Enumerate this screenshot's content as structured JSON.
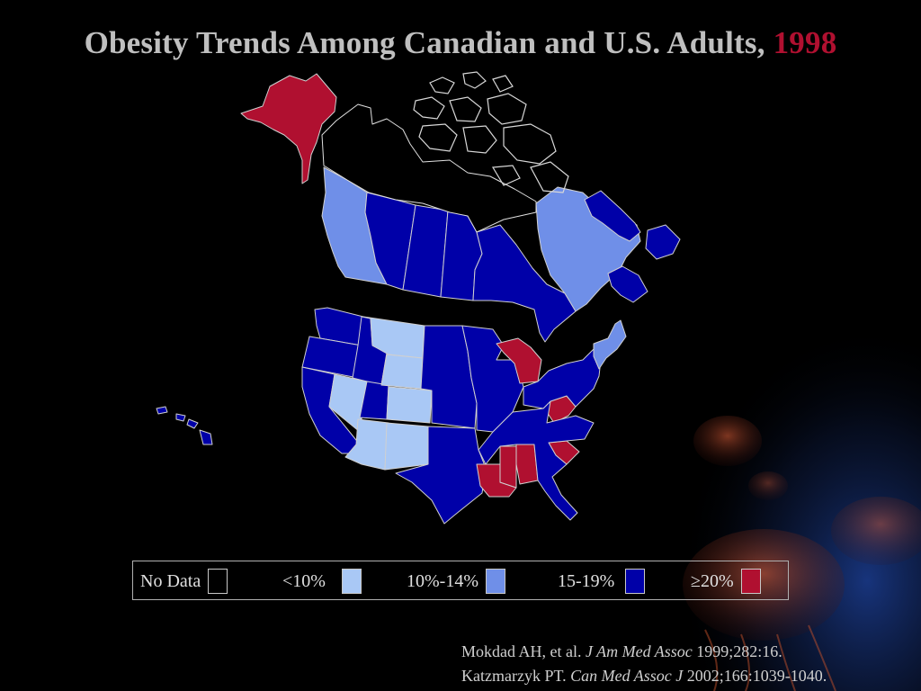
{
  "title": {
    "main": "Obesity Trends Among Canadian and U.S. Adults,",
    "year": "1998"
  },
  "colors": {
    "no_data": "#000000",
    "lt10": "#a9c8f5",
    "p10_14": "#6f8fe8",
    "p15_19": "#0000a8",
    "ge20": "#b01030",
    "title_year": "#b01030"
  },
  "legend": {
    "items": [
      {
        "label": "No Data",
        "color": "#000000"
      },
      {
        "label": "<10%",
        "color": "#a9c8f5"
      },
      {
        "label": "10%-14%",
        "color": "#6f8fe8"
      },
      {
        "label": "15-19%",
        "color": "#0000a8"
      },
      {
        "label": "≥20%",
        "color": "#b01030"
      }
    ]
  },
  "citations": [
    {
      "author": "Mokdad AH, et al.",
      "journal": "J Am Med Assoc",
      "ref": "1999;282:16."
    },
    {
      "author": "Katzmarzyk PT.",
      "journal": "Can Med Assoc J",
      "ref": "2002;166:1039-1040."
    }
  ],
  "map_data": {
    "regions": [
      {
        "name": "Alaska",
        "category": "ge20"
      },
      {
        "name": "British Columbia",
        "category": "p10_14"
      },
      {
        "name": "Alberta",
        "category": "p15_19"
      },
      {
        "name": "Saskatchewan",
        "category": "p15_19"
      },
      {
        "name": "Manitoba",
        "category": "p15_19"
      },
      {
        "name": "Ontario",
        "category": "p15_19"
      },
      {
        "name": "Quebec",
        "category": "p10_14"
      },
      {
        "name": "Newfoundland",
        "category": "p15_19"
      },
      {
        "name": "Maritimes",
        "category": "p15_19"
      },
      {
        "name": "Northern Territories",
        "category": "no_data"
      },
      {
        "name": "Hawaii",
        "category": "p15_19"
      },
      {
        "name": "Washington",
        "category": "p15_19"
      },
      {
        "name": "Oregon",
        "category": "p15_19"
      },
      {
        "name": "California",
        "category": "p15_19"
      },
      {
        "name": "Idaho",
        "category": "p15_19"
      },
      {
        "name": "Nevada",
        "category": "lt10"
      },
      {
        "name": "Utah",
        "category": "p15_19"
      },
      {
        "name": "Arizona",
        "category": "lt10"
      },
      {
        "name": "Montana",
        "category": "lt10"
      },
      {
        "name": "Wyoming",
        "category": "lt10"
      },
      {
        "name": "Colorado",
        "category": "lt10"
      },
      {
        "name": "New Mexico",
        "category": "lt10"
      },
      {
        "name": "Texas",
        "category": "p15_19"
      },
      {
        "name": "Great Plains",
        "category": "p15_19"
      },
      {
        "name": "Midwest",
        "category": "p15_19"
      },
      {
        "name": "Michigan",
        "category": "ge20"
      },
      {
        "name": "Louisiana",
        "category": "ge20"
      },
      {
        "name": "Mississippi",
        "category": "ge20"
      },
      {
        "name": "Alabama",
        "category": "ge20"
      },
      {
        "name": "South Carolina",
        "category": "ge20"
      },
      {
        "name": "West Virginia",
        "category": "ge20"
      },
      {
        "name": "Southeast",
        "category": "p15_19"
      },
      {
        "name": "Northeast",
        "category": "p15_19"
      },
      {
        "name": "New England",
        "category": "p10_14"
      }
    ]
  }
}
